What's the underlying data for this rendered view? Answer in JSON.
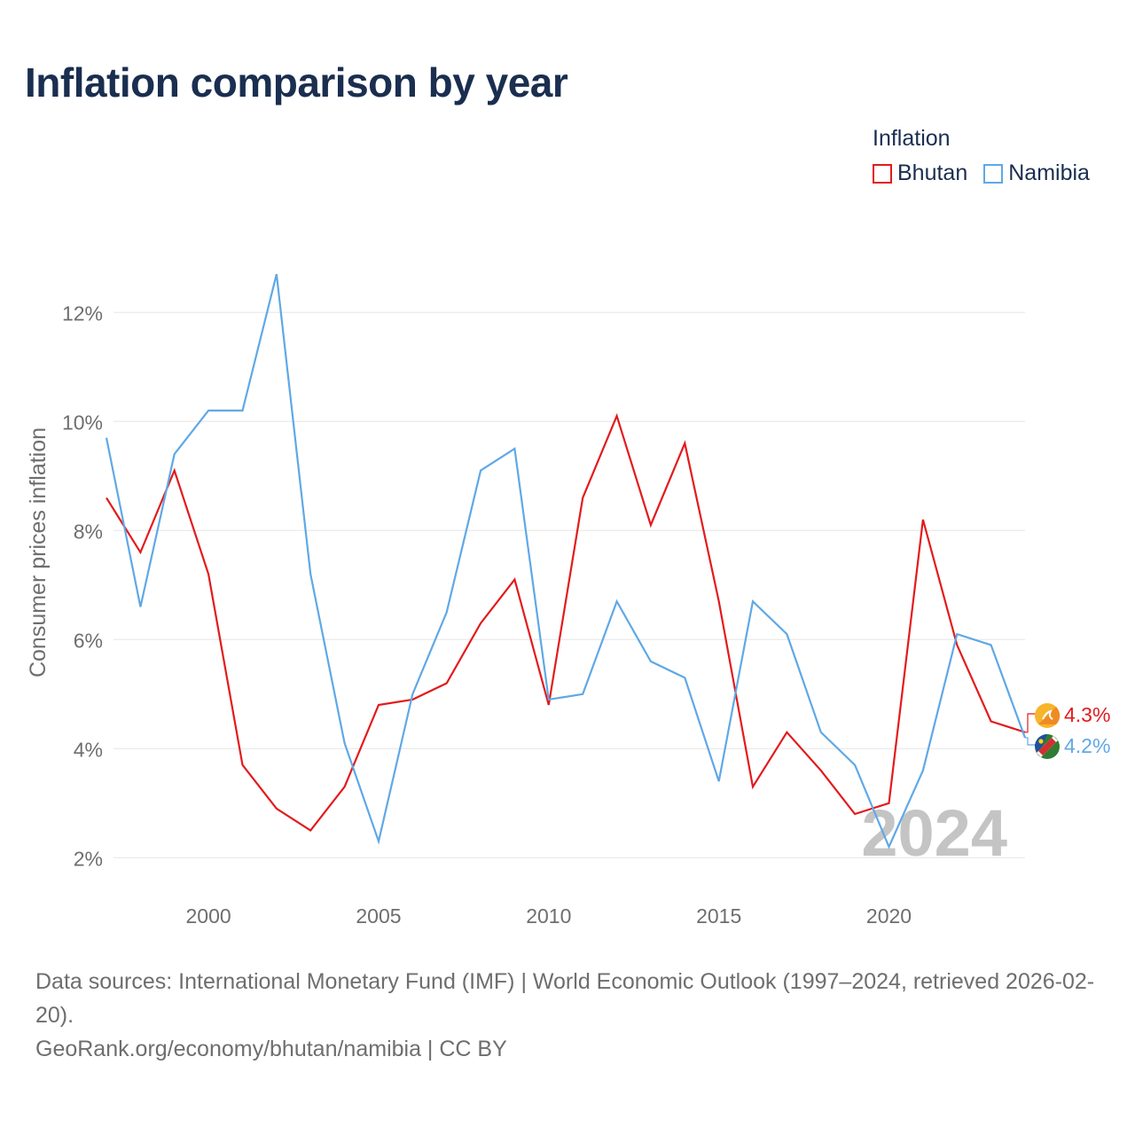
{
  "title": "Inflation comparison by year",
  "legend": {
    "title": "Inflation",
    "items": [
      {
        "name": "Bhutan",
        "color": "#e31a1c"
      },
      {
        "name": "Namibia",
        "color": "#5fa8e6"
      }
    ]
  },
  "year_watermark": "2024",
  "footer": {
    "sources": "Data sources: International Monetary Fund (IMF) | World Economic Outlook (1997–2024, retrieved 2026-02-20).",
    "credit": "GeoRank.org/economy/bhutan/namibia | CC BY"
  },
  "chart_data": {
    "type": "line",
    "title": "Inflation comparison by year",
    "xlabel": "",
    "ylabel": "Consumer prices inflation",
    "xlim": [
      1997,
      2024
    ],
    "ylim": [
      1.5,
      13.5
    ],
    "x_ticks": [
      2000,
      2005,
      2010,
      2015,
      2020
    ],
    "y_ticks": [
      2,
      4,
      6,
      8,
      10,
      12
    ],
    "y_tick_labels": [
      "2%",
      "4%",
      "6%",
      "8%",
      "10%",
      "12%"
    ],
    "grid": true,
    "x": [
      1997,
      1998,
      1999,
      2000,
      2001,
      2002,
      2003,
      2004,
      2005,
      2006,
      2007,
      2008,
      2009,
      2010,
      2011,
      2012,
      2013,
      2014,
      2015,
      2016,
      2017,
      2018,
      2019,
      2020,
      2021,
      2022,
      2023,
      2024
    ],
    "series": [
      {
        "name": "Bhutan",
        "color": "#e31a1c",
        "end_label": "4.3%",
        "values": [
          8.6,
          7.6,
          9.1,
          7.2,
          3.7,
          2.9,
          2.5,
          3.3,
          4.8,
          4.9,
          5.2,
          6.3,
          7.1,
          4.8,
          8.6,
          10.1,
          8.1,
          9.6,
          6.7,
          3.3,
          4.3,
          3.6,
          2.8,
          3.0,
          8.2,
          5.9,
          4.5,
          4.3
        ]
      },
      {
        "name": "Namibia",
        "color": "#5fa8e6",
        "end_label": "4.2%",
        "values": [
          9.7,
          6.6,
          9.4,
          10.2,
          10.2,
          12.7,
          7.2,
          4.1,
          2.3,
          5.0,
          6.5,
          9.1,
          9.5,
          4.9,
          5.0,
          6.7,
          5.6,
          5.3,
          3.4,
          6.7,
          6.1,
          4.3,
          3.7,
          2.2,
          3.6,
          6.1,
          5.9,
          4.2
        ]
      }
    ]
  }
}
